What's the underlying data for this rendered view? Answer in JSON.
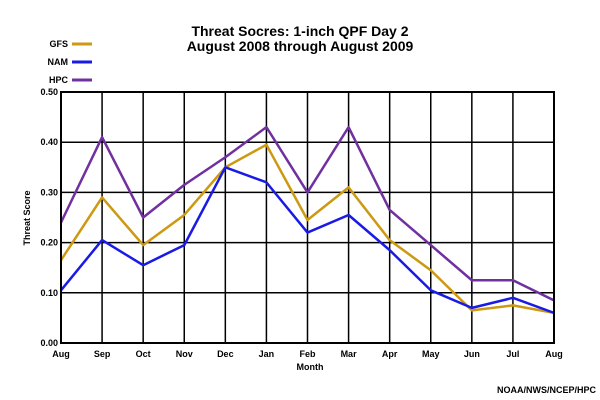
{
  "chart_data": {
    "type": "line",
    "title_line1": "Threat Socres: 1-inch QPF Day 2",
    "title_line2": "August 2008 through August 2009",
    "xlabel": "Month",
    "ylabel": "Threat Score",
    "credit": "NOAA/NWS/NCEP/HPC",
    "categories": [
      "Aug",
      "Sep",
      "Oct",
      "Nov",
      "Dec",
      "Jan",
      "Feb",
      "Mar",
      "Apr",
      "May",
      "Jun",
      "Jul",
      "Aug"
    ],
    "ylim": [
      0,
      0.5
    ],
    "yticks": [
      "0.00",
      "0.10",
      "0.20",
      "0.30",
      "0.40",
      "0.50"
    ],
    "grid": true,
    "legend_position": "top-left",
    "series": [
      {
        "name": "GFS",
        "color": "#cc9911",
        "values": [
          0.165,
          0.29,
          0.195,
          0.255,
          0.35,
          0.395,
          0.245,
          0.31,
          0.205,
          0.145,
          0.065,
          0.075,
          0.06
        ]
      },
      {
        "name": "NAM",
        "color": "#1a1ae6",
        "values": [
          0.105,
          0.205,
          0.155,
          0.195,
          0.35,
          0.32,
          0.22,
          0.255,
          0.185,
          0.105,
          0.07,
          0.09,
          0.06
        ]
      },
      {
        "name": "HPC",
        "color": "#7030a0",
        "values": [
          0.24,
          0.41,
          0.25,
          0.315,
          0.37,
          0.43,
          0.3,
          0.43,
          0.265,
          0.195,
          0.125,
          0.125,
          0.085
        ]
      }
    ]
  }
}
